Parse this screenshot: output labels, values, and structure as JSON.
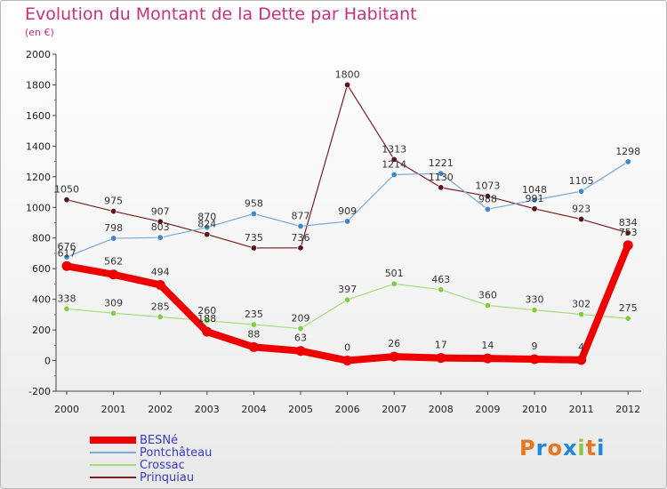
{
  "header": {
    "title": "Evolution du Montant de la Dette par Habitant",
    "subtitle": "(en €)"
  },
  "logo": {
    "text": "Proxiti",
    "letter_colors": [
      "#e8761e",
      "#1e88d8",
      "#e8761e",
      "#1e88d8",
      "#8cc63f",
      "#e8761e",
      "#1e88d8"
    ]
  },
  "chart_data": {
    "type": "line",
    "title": "Evolution du Montant de la Dette par Habitant",
    "subtitle": "(en €)",
    "x": [
      "2000",
      "2001",
      "2002",
      "2003",
      "2004",
      "2005",
      "2006",
      "2007",
      "2008",
      "2009",
      "2010",
      "2011",
      "2012"
    ],
    "ylim": [
      -200,
      2000
    ],
    "yticks": [
      -200,
      0,
      200,
      400,
      600,
      800,
      1000,
      1200,
      1400,
      1600,
      1800,
      2000
    ],
    "grid": false,
    "legend_position": "bottom-left",
    "series": [
      {
        "name": "Prinquiau",
        "color": "#7a1f24",
        "marker_color": "#5c1317",
        "width": 1.2,
        "values": [
          1050,
          975,
          907,
          824,
          735,
          736,
          1800,
          1313,
          1130,
          1073,
          991,
          923,
          834
        ]
      },
      {
        "name": "Pontchâteau",
        "color": "#7aaad8",
        "marker_color": "#3f86cf",
        "width": 1.2,
        "values": [
          676,
          798,
          803,
          870,
          958,
          877,
          909,
          1214,
          1221,
          988,
          1048,
          1105,
          1298
        ]
      },
      {
        "name": "Crossac",
        "color": "#a6db7a",
        "marker_color": "#82cc44",
        "width": 1.2,
        "values": [
          338,
          309,
          285,
          260,
          235,
          209,
          397,
          501,
          463,
          360,
          330,
          302,
          275
        ]
      },
      {
        "name": "BESNé",
        "color": "#ee0000",
        "marker_color": "#ee0000",
        "width": 8,
        "values": [
          617,
          562,
          494,
          188,
          88,
          63,
          0,
          26,
          17,
          14,
          9,
          4,
          753
        ]
      }
    ],
    "legend_order": [
      "BESNé",
      "Pontchâteau",
      "Crossac",
      "Prinquiau"
    ]
  }
}
